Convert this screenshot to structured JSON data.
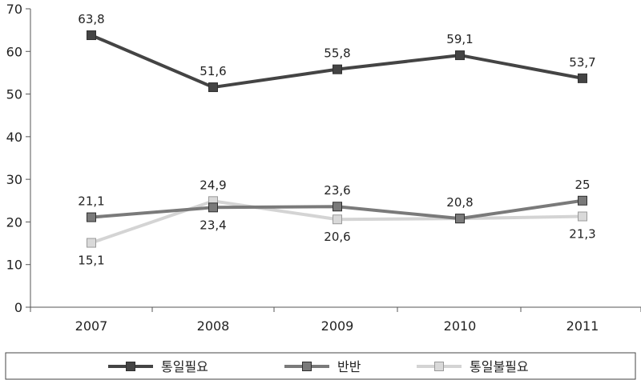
{
  "chart_data": {
    "type": "line",
    "categories": [
      "2007",
      "2008",
      "2009",
      "2010",
      "2011"
    ],
    "ylim": [
      0,
      70
    ],
    "yticks": [
      0,
      10,
      20,
      30,
      40,
      50,
      60,
      70
    ],
    "grid": false,
    "legend_position": "bottom",
    "series": [
      {
        "name": "통일필요",
        "values": [
          63.8,
          51.6,
          55.8,
          59.1,
          53.7
        ],
        "labels": [
          "63,8",
          "51,6",
          "55,8",
          "59,1",
          "53,7"
        ],
        "label_side": [
          "above",
          "above",
          "above",
          "above",
          "above"
        ],
        "line_color": "#444444",
        "marker_color": "#444444"
      },
      {
        "name": "반반",
        "values": [
          21.1,
          23.4,
          23.6,
          20.8,
          25
        ],
        "labels": [
          "21,1",
          "23,4",
          "23,6",
          "20,8",
          "25"
        ],
        "label_side": [
          "above",
          "below",
          "above",
          "above",
          "above"
        ],
        "line_color": "#7a7a7a",
        "marker_color": "#7a7a7a"
      },
      {
        "name": "통일불필요",
        "values": [
          15.1,
          24.9,
          20.6,
          20.8,
          21.3
        ],
        "labels": [
          "15,1",
          "24,9",
          "20,6",
          "",
          "21,3"
        ],
        "label_side": [
          "below",
          "above",
          "below",
          "below",
          "below"
        ],
        "line_color": "#d4d4d4",
        "marker_color": "#d9d9d9"
      }
    ]
  }
}
